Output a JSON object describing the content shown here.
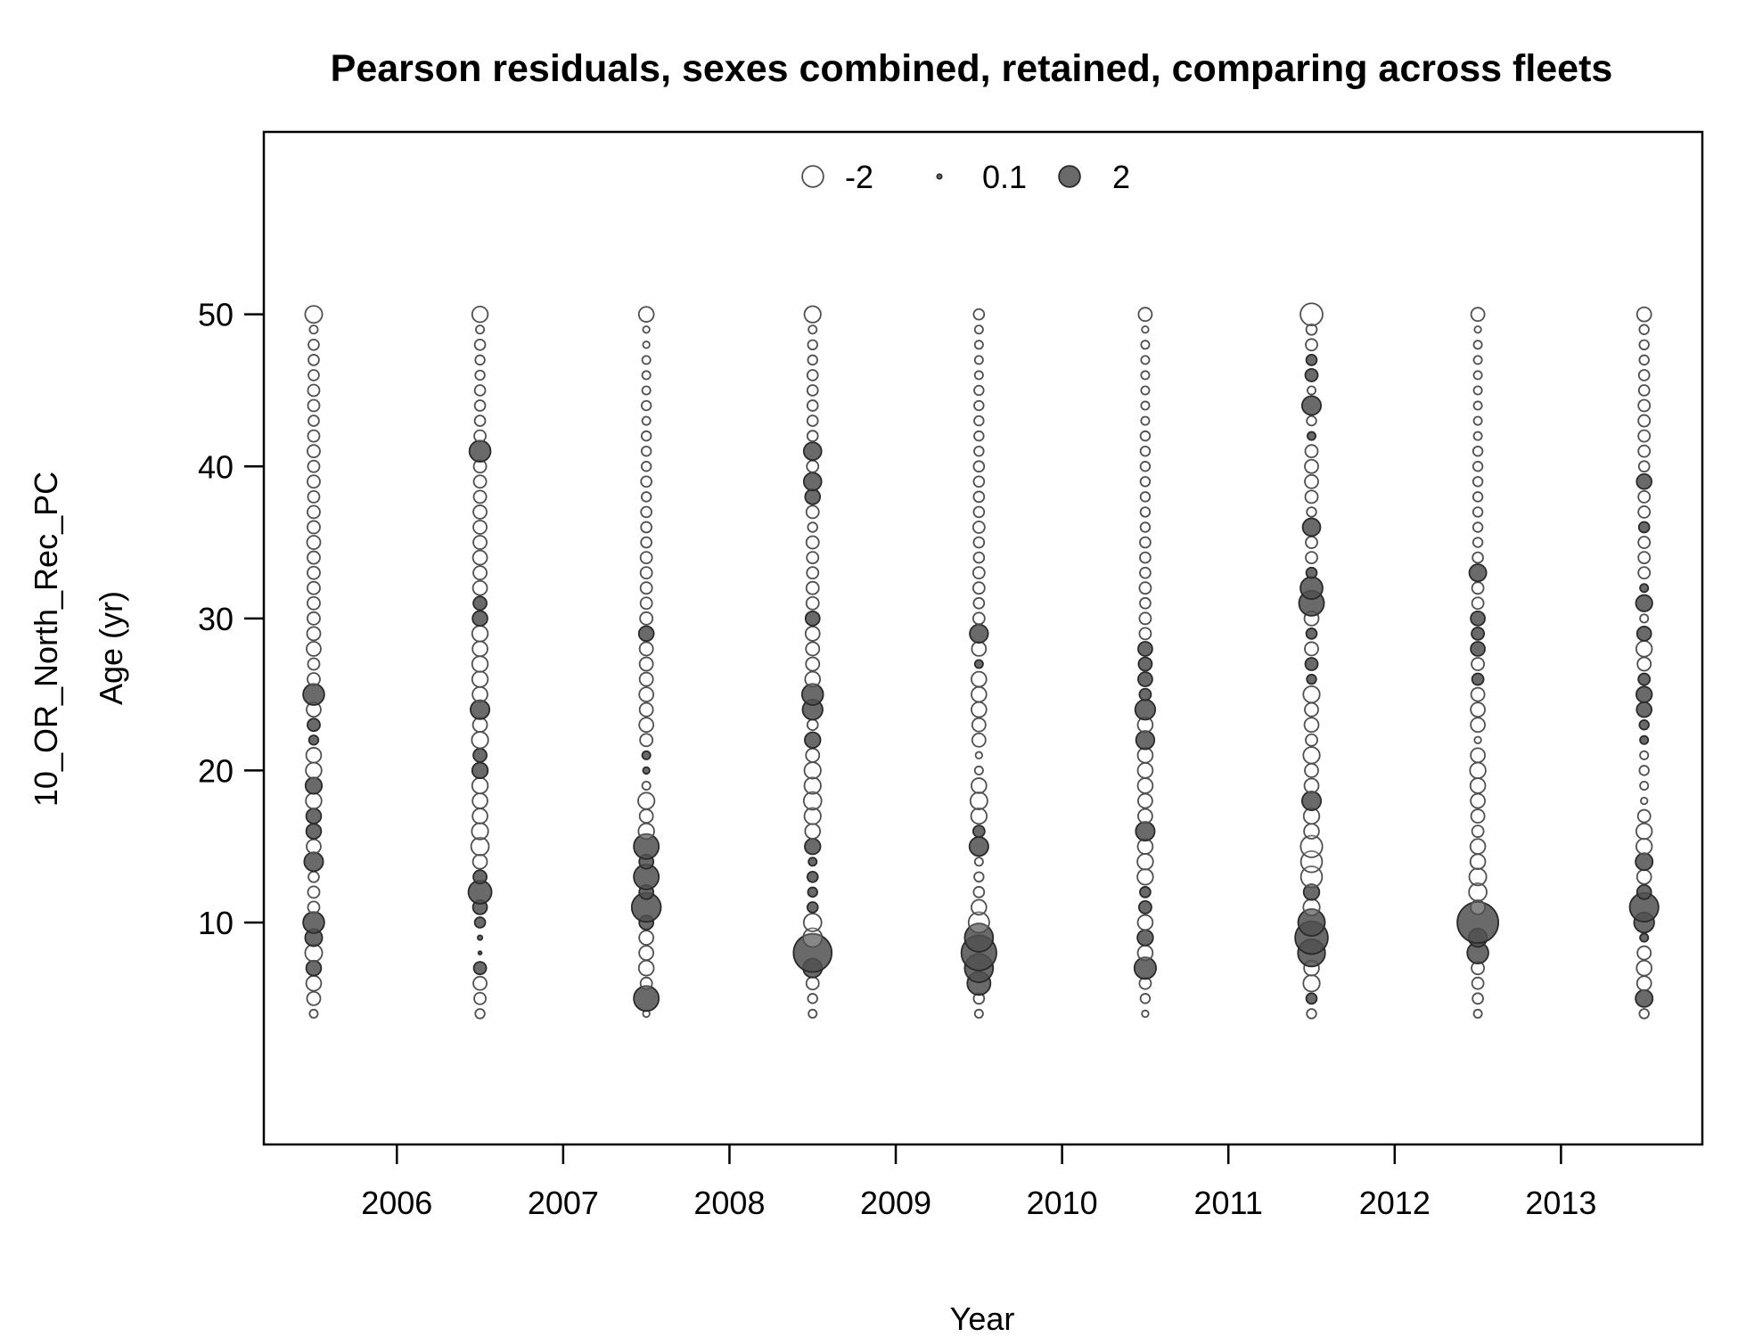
{
  "chart_data": {
    "type": "scatter",
    "title": "Pearson residuals, sexes combined, retained, comparing across fleets",
    "xlabel": "Year",
    "ylabel_outer": "10_OR_North_Rec_PC",
    "ylabel_inner": "Age (yr)",
    "xlim": [
      2005.2,
      2013.85
    ],
    "ylim": [
      -4.6,
      62
    ],
    "x_ticks": [
      2006,
      2007,
      2008,
      2009,
      2010,
      2011,
      2012,
      2013
    ],
    "y_ticks": [
      10,
      20,
      30,
      40,
      50
    ],
    "legend": {
      "placement": "top-center",
      "entries": [
        {
          "label": "-2",
          "value": -2
        },
        {
          "label": "0.1",
          "value": 0.1
        },
        {
          "label": "2",
          "value": 2
        }
      ]
    },
    "colors": {
      "positive_fill": "#505050",
      "positive_stroke": "#2a2a2a",
      "negative_fill": "#ffffff",
      "negative_stroke": "#505050"
    },
    "size_scale": "sqrt(|residual|)",
    "x_series": [
      2005.5,
      2006.5,
      2007.5,
      2008.5,
      2009.5,
      2010.5,
      2011.5,
      2012.5,
      2013.5
    ],
    "ages": [
      4,
      5,
      6,
      7,
      8,
      9,
      10,
      11,
      12,
      13,
      14,
      15,
      16,
      17,
      18,
      19,
      20,
      21,
      22,
      23,
      24,
      25,
      26,
      27,
      28,
      29,
      30,
      31,
      32,
      33,
      34,
      35,
      36,
      37,
      38,
      39,
      40,
      41,
      42,
      43,
      44,
      45,
      46,
      47,
      48,
      49,
      50
    ],
    "residuals": [
      [
        -0.3,
        -0.8,
        -1.0,
        1.0,
        -1.3,
        1.3,
        2.0,
        -0.6,
        -0.6,
        -0.5,
        1.6,
        -0.9,
        1.0,
        1.0,
        -1.1,
        1.2,
        -1.1,
        -1.0,
        0.4,
        0.7,
        -0.9,
        2.0,
        -0.7,
        -0.6,
        -0.9,
        -0.8,
        -0.7,
        -0.7,
        -0.7,
        -0.7,
        -0.7,
        -0.8,
        -0.7,
        -0.7,
        -0.6,
        -0.7,
        -0.6,
        -0.7,
        -0.6,
        -0.5,
        -0.6,
        -0.6,
        -0.5,
        -0.5,
        -0.5,
        -0.3,
        -1.3
      ],
      [
        -0.4,
        -0.6,
        -0.8,
        0.7,
        0.05,
        0.1,
        0.5,
        0.9,
        2.4,
        0.8,
        -0.9,
        -1.4,
        -1.2,
        -1.0,
        -1.0,
        -1.1,
        1.1,
        0.8,
        -1.2,
        -0.9,
        1.6,
        -1.0,
        -1.1,
        -1.1,
        -1.0,
        -1.1,
        1.0,
        0.8,
        -0.9,
        -0.8,
        -0.9,
        -0.8,
        -0.8,
        -0.8,
        -0.7,
        -0.7,
        -0.7,
        2.0,
        -0.6,
        -0.5,
        -0.5,
        -0.5,
        -0.4,
        -0.4,
        -0.5,
        -0.3,
        -1.1
      ],
      [
        -0.2,
        2.8,
        -0.6,
        -1.0,
        -0.9,
        -0.9,
        0.9,
        3.8,
        0.9,
        2.8,
        0.9,
        2.8,
        -1.1,
        -0.8,
        -1.2,
        -0.3,
        0.2,
        0.3,
        -0.7,
        -0.9,
        -0.8,
        -0.9,
        -0.8,
        -0.8,
        -0.8,
        1.0,
        -0.7,
        -0.6,
        -0.6,
        -0.6,
        -0.6,
        -0.5,
        -0.5,
        -0.5,
        -0.4,
        -0.5,
        -0.4,
        -0.4,
        -0.4,
        -0.3,
        -0.4,
        -0.3,
        -0.3,
        -0.3,
        -0.2,
        -0.2,
        -1.0
      ],
      [
        -0.3,
        -0.4,
        -0.7,
        1.6,
        6.5,
        -1.6,
        -1.4,
        0.5,
        0.4,
        0.5,
        0.3,
        1.1,
        -1.0,
        -1.2,
        -1.4,
        -1.2,
        -1.2,
        -0.8,
        1.1,
        -0.5,
        1.8,
        2.0,
        -1.0,
        -0.8,
        -0.8,
        -0.9,
        0.9,
        -0.7,
        -0.7,
        -0.6,
        -0.6,
        -0.7,
        -0.4,
        -0.7,
        1.0,
        1.4,
        -0.6,
        1.4,
        -0.5,
        -0.5,
        -0.5,
        -0.5,
        -0.5,
        -0.4,
        -0.4,
        -0.3,
        -1.2
      ],
      [
        -0.3,
        -0.5,
        2.4,
        3.6,
        5.5,
        3.6,
        -1.9,
        -1.0,
        -0.5,
        -0.4,
        -0.3,
        1.6,
        0.6,
        -1.1,
        -1.3,
        -1.0,
        -0.3,
        -0.2,
        -0.8,
        -0.8,
        -1.0,
        -1.0,
        -1.0,
        0.3,
        -0.9,
        1.5,
        -0.6,
        -0.5,
        -0.6,
        -0.6,
        -0.5,
        -0.5,
        -0.6,
        -0.5,
        -0.5,
        -0.5,
        -0.5,
        -0.4,
        -0.4,
        -0.4,
        -0.4,
        -0.4,
        -0.3,
        -0.3,
        -0.3,
        -0.3,
        -0.5
      ],
      [
        -0.2,
        -0.4,
        -0.6,
        2.1,
        -1.0,
        1.1,
        -1.0,
        0.7,
        0.5,
        -1.1,
        -1.1,
        -1.0,
        1.6,
        -0.9,
        -0.9,
        -1.0,
        -1.0,
        -1.0,
        1.5,
        -1.0,
        1.8,
        0.6,
        0.9,
        0.8,
        0.9,
        -0.6,
        -0.6,
        -0.5,
        -0.6,
        -0.5,
        -0.5,
        -0.5,
        -0.4,
        -0.4,
        -0.4,
        -0.4,
        -0.4,
        -0.4,
        -0.4,
        -0.3,
        -0.3,
        -0.3,
        -0.3,
        -0.3,
        -0.3,
        -0.2,
        -0.8
      ],
      [
        -0.4,
        0.5,
        -1.2,
        -1.0,
        3.3,
        4.8,
        3.2,
        -1.2,
        1.1,
        -2.0,
        -2.0,
        -2.1,
        -1.0,
        -1.1,
        1.6,
        -0.9,
        -0.8,
        -1.2,
        -0.6,
        -0.9,
        -0.8,
        -1.2,
        0.4,
        0.7,
        -0.8,
        0.5,
        -0.9,
        2.8,
        2.2,
        0.5,
        -0.6,
        -0.6,
        1.4,
        -0.4,
        -0.7,
        -0.8,
        -0.8,
        -0.7,
        0.3,
        -0.4,
        1.6,
        -0.3,
        0.7,
        0.5,
        -0.6,
        -0.5,
        -2.2
      ],
      [
        -0.3,
        -0.5,
        -0.6,
        -0.7,
        2.0,
        1.5,
        7.5,
        -0.9,
        -1.4,
        -1.3,
        -1.0,
        -1.0,
        -0.6,
        -0.8,
        -0.9,
        -1.0,
        -1.1,
        -0.9,
        -0.2,
        -0.9,
        -0.9,
        -0.8,
        0.6,
        -0.7,
        0.9,
        0.7,
        0.9,
        -0.6,
        -0.6,
        1.3,
        -0.5,
        -0.4,
        -0.4,
        -0.4,
        -0.4,
        -0.4,
        -0.4,
        -0.4,
        -0.3,
        -0.3,
        -0.3,
        -0.3,
        -0.3,
        -0.3,
        -0.3,
        -0.2,
        -0.8
      ],
      [
        -0.4,
        1.3,
        -0.9,
        -1.0,
        -0.8,
        0.3,
        1.8,
        3.7,
        0.9,
        -0.9,
        1.3,
        -1.1,
        -1.1,
        -0.7,
        -0.2,
        -0.3,
        -0.4,
        -0.3,
        0.3,
        0.4,
        1.0,
        1.1,
        0.6,
        -0.8,
        -1.1,
        0.9,
        -0.3,
        1.2,
        0.3,
        -0.6,
        -0.6,
        -0.6,
        0.5,
        -0.6,
        -0.6,
        1.0,
        -0.5,
        -0.6,
        -0.6,
        -0.6,
        -0.6,
        -0.5,
        -0.5,
        -0.4,
        -0.4,
        -0.4,
        -0.9
      ]
    ]
  }
}
